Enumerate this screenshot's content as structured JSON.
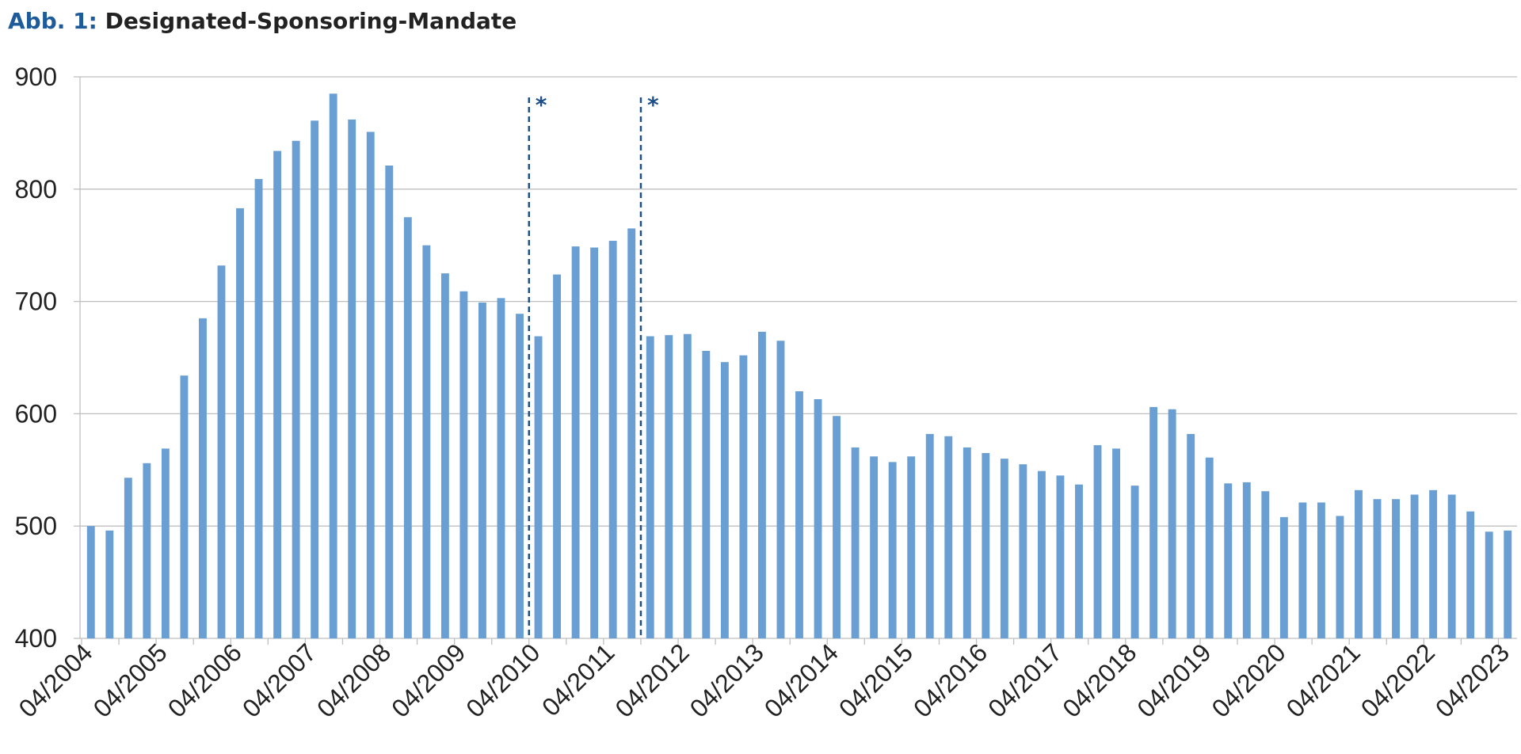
{
  "figure": {
    "prefix": "Abb. 1:",
    "title": "Designated-Sponsoring-Mandate"
  },
  "colors": {
    "bar": "#6a9fd4",
    "grid": "#bfbfbf",
    "marker": "#1d4f86",
    "title_prefix": "#1d5b9a"
  },
  "chart_data": {
    "type": "bar",
    "title": "Designated-Sponsoring-Mandate",
    "xlabel": "",
    "ylabel": "",
    "ylim": [
      400,
      900
    ],
    "yticks": [
      400,
      500,
      600,
      700,
      800,
      900
    ],
    "grid": true,
    "x_tick_labels": [
      "04/2004",
      "04/2005",
      "04/2006",
      "04/2007",
      "04/2008",
      "04/2009",
      "04/2010",
      "04/2011",
      "04/2012",
      "04/2013",
      "04/2014",
      "04/2015",
      "04/2016",
      "04/2017",
      "04/2018",
      "04/2019",
      "04/2020",
      "04/2021",
      "04/2022",
      "04/2023"
    ],
    "frequency": "quarterly",
    "first_period": "04/2004",
    "values": [
      500,
      496,
      543,
      556,
      569,
      634,
      685,
      732,
      783,
      809,
      834,
      843,
      861,
      885,
      862,
      851,
      821,
      775,
      750,
      725,
      709,
      699,
      703,
      689,
      669,
      724,
      749,
      748,
      754,
      765,
      669,
      670,
      671,
      656,
      646,
      652,
      673,
      665,
      620,
      613,
      598,
      570,
      562,
      557,
      562,
      582,
      580,
      570,
      565,
      560,
      555,
      549,
      545,
      537,
      572,
      569,
      536,
      606,
      604,
      582,
      561,
      538,
      539,
      531,
      508,
      521,
      521,
      509,
      532,
      524,
      524,
      528,
      532,
      528,
      513,
      495,
      496
    ],
    "markers": [
      {
        "label": "*",
        "after_period": "01/2010"
      },
      {
        "label": "*",
        "after_period": "07/2011"
      }
    ]
  }
}
